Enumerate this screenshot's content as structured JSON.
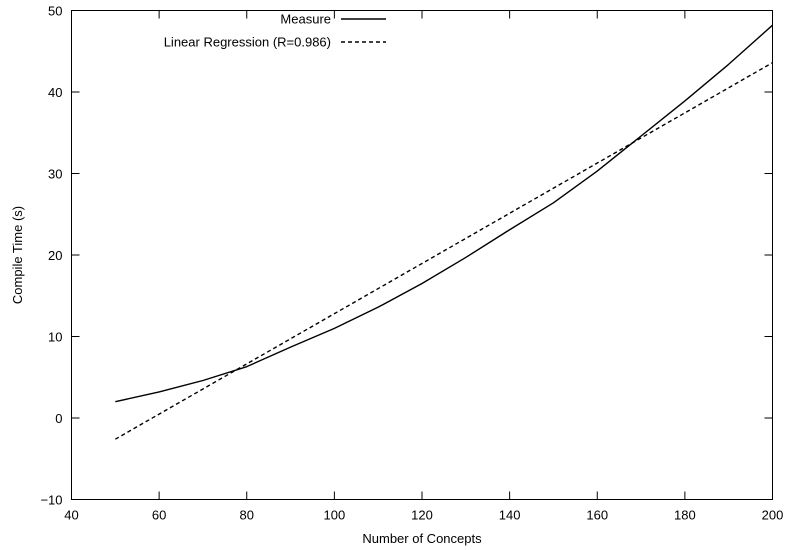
{
  "chart_data": {
    "type": "line",
    "title": "",
    "xlabel": "Number of Concepts",
    "ylabel": "Compile Time (s)",
    "xlim": [
      40,
      200
    ],
    "ylim": [
      -10,
      50
    ],
    "xticks": [
      40,
      60,
      80,
      100,
      120,
      140,
      160,
      180,
      200
    ],
    "yticks": [
      -10,
      0,
      10,
      20,
      30,
      40,
      50
    ],
    "xtick_labels": [
      "40",
      "60",
      "80",
      "100",
      "120",
      "140",
      "160",
      "180",
      "200"
    ],
    "ytick_labels": [
      "−10",
      "0",
      "10",
      "20",
      "30",
      "40",
      "50"
    ],
    "grid": false,
    "legend_position": "top-left",
    "series": [
      {
        "name": "Measure",
        "style": "solid",
        "color": "#000000",
        "x": [
          50,
          60,
          70,
          80,
          90,
          100,
          110,
          120,
          130,
          140,
          150,
          160,
          170,
          180,
          190,
          200
        ],
        "y": [
          2.0,
          3.2,
          4.6,
          6.3,
          8.7,
          11.0,
          13.6,
          16.5,
          19.7,
          23.1,
          26.4,
          30.3,
          34.6,
          38.9,
          43.4,
          48.2
        ]
      },
      {
        "name": "Linear Regression (R=0.986)",
        "style": "dashed",
        "color": "#000000",
        "x": [
          50,
          200
        ],
        "y": [
          -2.6,
          43.6
        ]
      }
    ]
  }
}
